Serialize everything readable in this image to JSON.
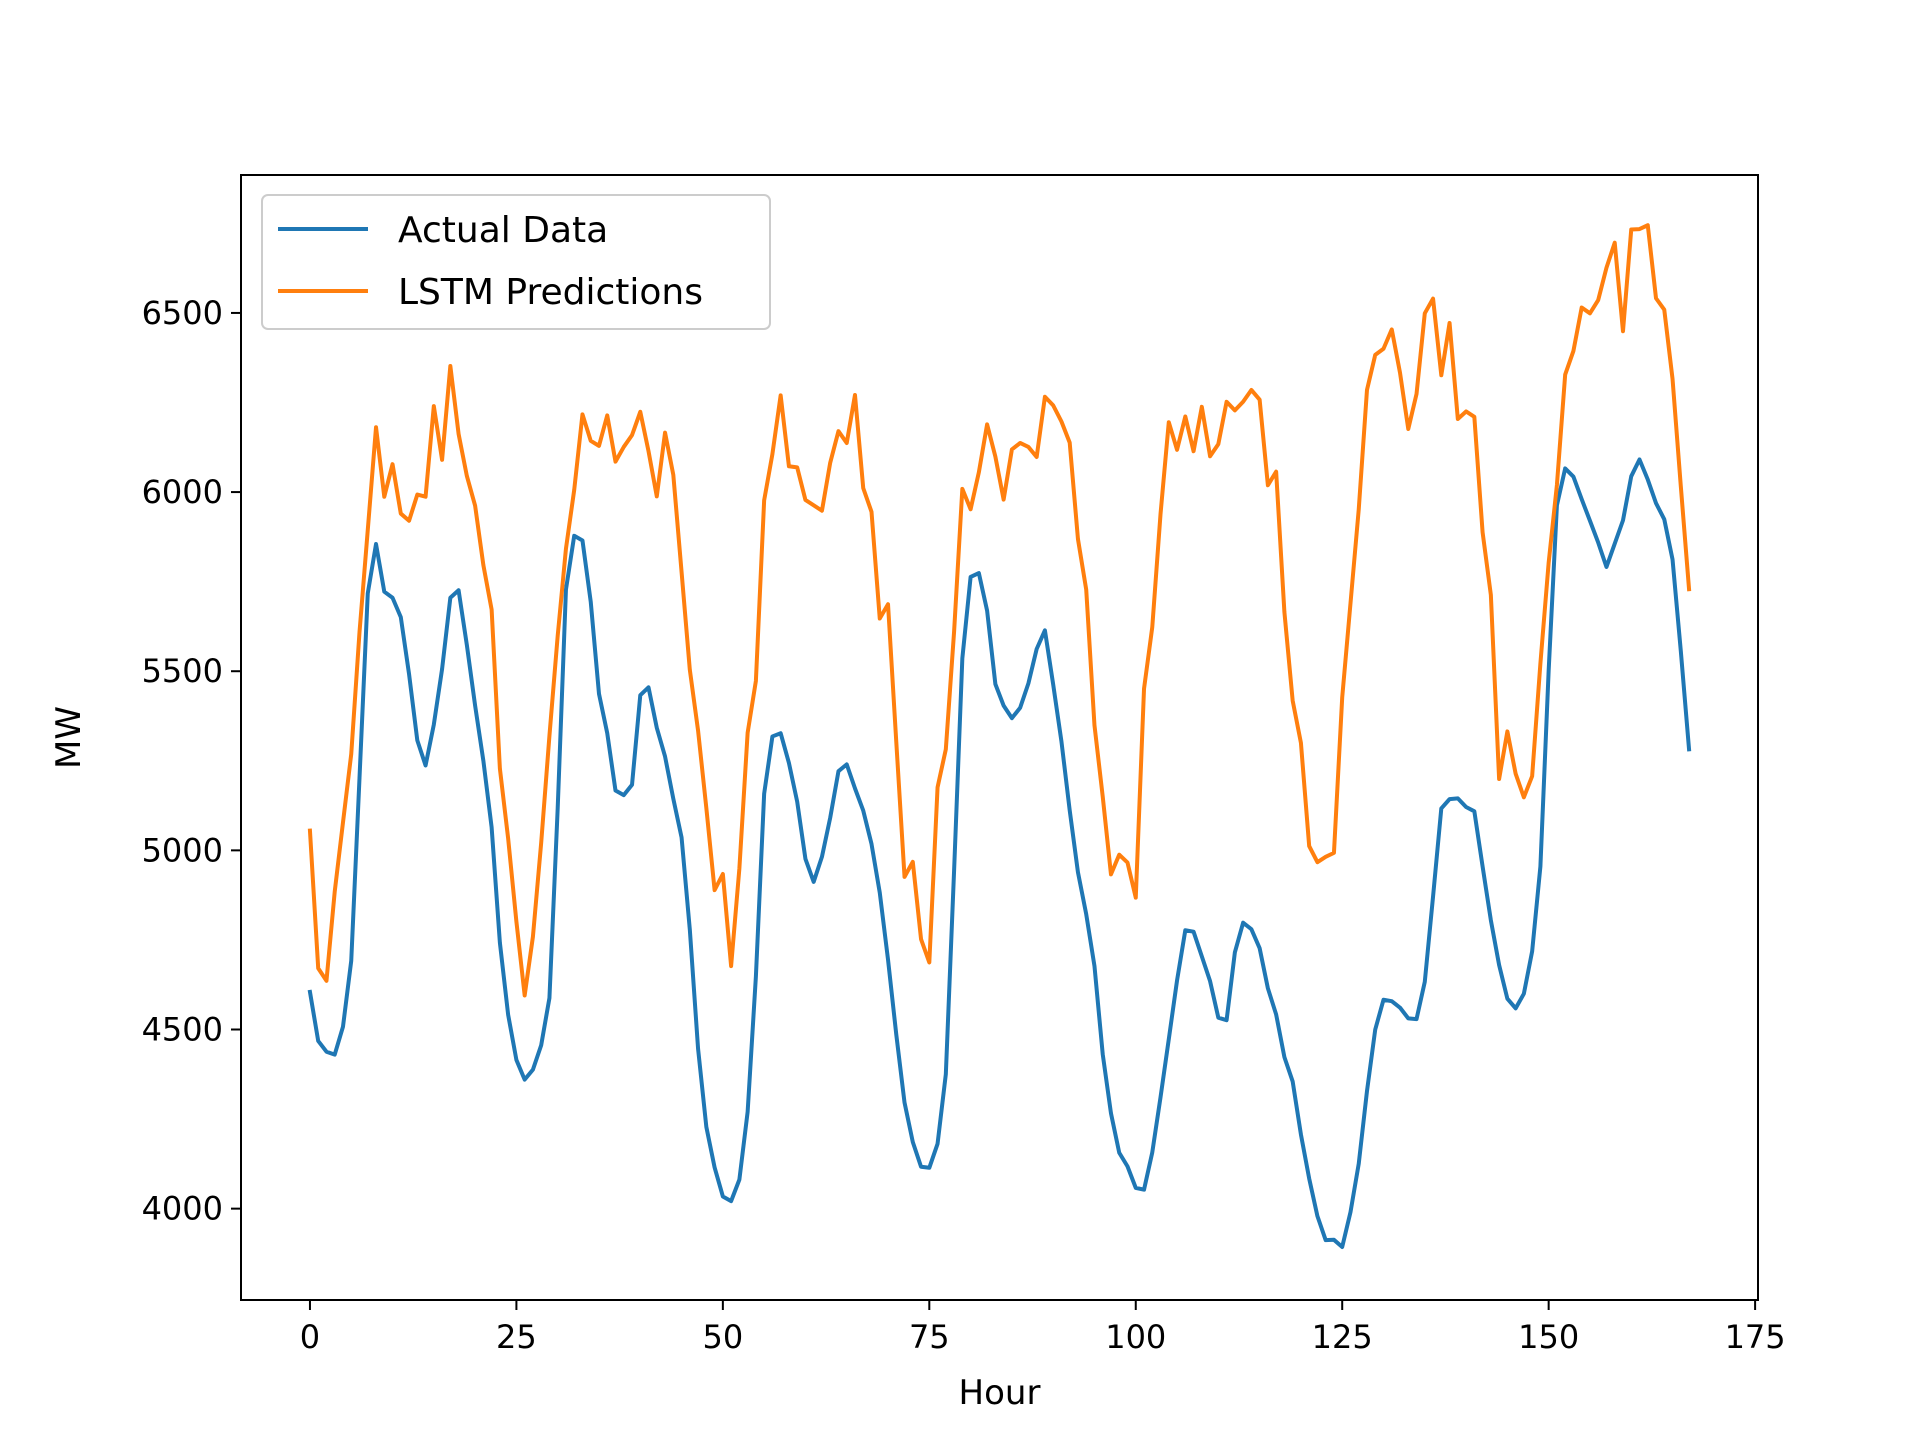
{
  "chart_data": {
    "type": "line",
    "xlabel": "Hour",
    "ylabel": "MW",
    "xlim": [
      -8.35,
      175.35
    ],
    "ylim": [
      3745,
      6885
    ],
    "xticks": [
      0,
      25,
      50,
      75,
      100,
      125,
      150,
      175
    ],
    "yticks": [
      4000,
      4500,
      5000,
      5500,
      6000,
      6500
    ],
    "grid": false,
    "legend_position": "top-left",
    "series": [
      {
        "name": "Actual Data",
        "color": "#1f77b4",
        "values": [
          4605,
          4468,
          4438,
          4430,
          4508,
          4692,
          5202,
          5717,
          5855,
          5722,
          5705,
          5651,
          5492,
          5307,
          5237,
          5351,
          5506,
          5705,
          5726,
          5573,
          5404,
          5250,
          5064,
          4742,
          4541,
          4415,
          4360,
          4388,
          4456,
          4588,
          5118,
          5728,
          5878,
          5865,
          5694,
          5437,
          5327,
          5167,
          5154,
          5183,
          5433,
          5455,
          5342,
          5262,
          5144,
          5036,
          4779,
          4446,
          4228,
          4115,
          4034,
          4021,
          4081,
          4270,
          4648,
          5158,
          5318,
          5327,
          5244,
          5136,
          4976,
          4912,
          4982,
          5091,
          5221,
          5240,
          5173,
          5111,
          5018,
          4882,
          4695,
          4486,
          4296,
          4186,
          4117,
          4114,
          4181,
          4375,
          4943,
          5536,
          5763,
          5774,
          5669,
          5464,
          5404,
          5369,
          5398,
          5466,
          5562,
          5614,
          5463,
          5304,
          5112,
          4939,
          4822,
          4677,
          4431,
          4266,
          4156,
          4118,
          4058,
          4053,
          4157,
          4311,
          4473,
          4637,
          4777,
          4773,
          4704,
          4635,
          4533,
          4526,
          4715,
          4798,
          4780,
          4727,
          4615,
          4542,
          4423,
          4355,
          4207,
          4084,
          3979,
          3912,
          3913,
          3893,
          3990,
          4125,
          4328,
          4500,
          4583,
          4579,
          4561,
          4531,
          4529,
          4633,
          4871,
          5117,
          5143,
          5145,
          5121,
          5109,
          4955,
          4805,
          4680,
          4586,
          4559,
          4600,
          4718,
          4955,
          5502,
          5963,
          6066,
          6043,
          5980,
          5920,
          5859,
          5791,
          5856,
          5921,
          6044,
          6091,
          6035,
          5969,
          5924,
          5812,
          5557,
          5282
        ]
      },
      {
        "name": "LSTM Predictions",
        "color": "#ff7f0e",
        "values": [
          5055,
          4671,
          4636,
          4885,
          5078,
          5269,
          5609,
          5894,
          6181,
          5987,
          6078,
          5940,
          5920,
          5993,
          5987,
          6240,
          6090,
          6352,
          6162,
          6045,
          5962,
          5796,
          5672,
          5228,
          5033,
          4801,
          4595,
          4759,
          5021,
          5320,
          5599,
          5842,
          6006,
          6217,
          6143,
          6129,
          6214,
          6085,
          6126,
          6159,
          6224,
          6114,
          5988,
          6166,
          6048,
          5777,
          5504,
          5334,
          5118,
          4889,
          4934,
          4677,
          4949,
          5328,
          5473,
          5977,
          6106,
          6270,
          6072,
          6069,
          5978,
          5963,
          5948,
          6082,
          6170,
          6137,
          6271,
          6011,
          5945,
          5647,
          5687,
          5303,
          4926,
          4968,
          4752,
          4687,
          5176,
          5282,
          5610,
          6009,
          5952,
          6055,
          6189,
          6099,
          5979,
          6119,
          6137,
          6126,
          6098,
          6266,
          6242,
          6197,
          6138,
          5869,
          5728,
          5349,
          5150,
          4933,
          4988,
          4966,
          4868,
          5451,
          5623,
          5939,
          6195,
          6118,
          6211,
          6114,
          6238,
          6100,
          6134,
          6252,
          6228,
          6252,
          6285,
          6258,
          6019,
          6057,
          5665,
          5418,
          5300,
          5012,
          4967,
          4982,
          4993,
          5427,
          5689,
          5951,
          6285,
          6383,
          6400,
          6454,
          6333,
          6176,
          6274,
          6499,
          6540,
          6326,
          6472,
          6204,
          6225,
          6210,
          5888,
          5713,
          5199,
          5332,
          5214,
          5148,
          5207,
          5522,
          5803,
          6020,
          6328,
          6394,
          6515,
          6499,
          6536,
          6626,
          6696,
          6449,
          6733,
          6734,
          6745,
          6541,
          6509,
          6316,
          6017,
          5729
        ]
      }
    ]
  }
}
